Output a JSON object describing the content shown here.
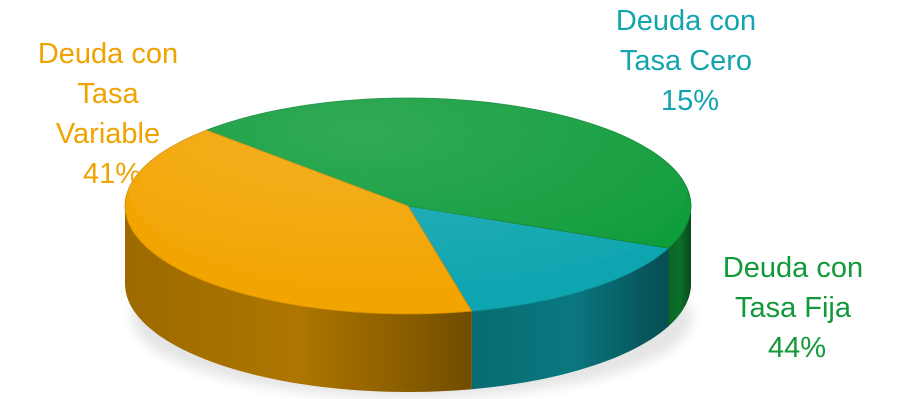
{
  "chart_data": {
    "type": "pie",
    "title": "",
    "truncated_heading": "",
    "slices": [
      {
        "name": "Deuda con Tasa Cero",
        "label_lines": [
          "Deuda con",
          "Tasa Cero",
          "15%"
        ],
        "value": 15,
        "color": "#0EA5B0"
      },
      {
        "name": "Deuda con Tasa Fija",
        "label_lines": [
          "Deuda con",
          "Tasa Fija",
          "44%"
        ],
        "value": 44,
        "color": "#0F9C3A"
      },
      {
        "name": "Deuda con Tasa Variable",
        "label_lines": [
          "Deuda con",
          "Tasa",
          "Variable",
          "41%"
        ],
        "value": 41,
        "color": "#F2A400"
      }
    ],
    "style": "3d-pie",
    "legend": "none",
    "label_colors": [
      "#14A4AE",
      "#11993A",
      "#F0A300"
    ]
  }
}
